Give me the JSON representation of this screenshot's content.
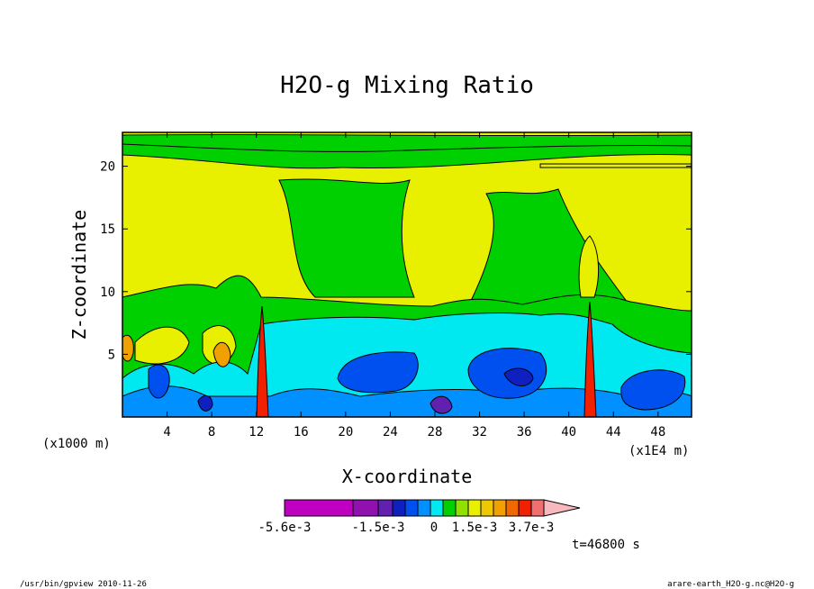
{
  "chart_data": {
    "type": "heatmap",
    "title": "H2O-g Mixing Ratio",
    "xlabel": "X-coordinate",
    "ylabel": "Z-coordinate",
    "x_unit_label": "(x1000 m)",
    "x_scale_label": "(x1E4 m)",
    "xlim": [
      0,
      51
    ],
    "ylim": [
      0,
      22.7
    ],
    "x_ticks": [
      "4",
      "8",
      "12",
      "16",
      "20",
      "24",
      "28",
      "32",
      "36",
      "40",
      "44",
      "48"
    ],
    "y_ticks": [
      "5",
      "10",
      "15",
      "20"
    ],
    "colorbar": {
      "labels": [
        "-5.6e-3",
        "-1.5e-3",
        "0",
        "1.5e-3",
        "3.7e-3"
      ],
      "colors": [
        "#c000c0",
        "#9010b0",
        "#6020b0",
        "#1020c0",
        "#0050f0",
        "#0090ff",
        "#00e8f0",
        "#00d000",
        "#90e000",
        "#e8f000",
        "#f0c800",
        "#f0a000",
        "#f06800",
        "#f02000",
        "#f07070",
        "#f8b8c0"
      ]
    },
    "time_label": "t=46800 s"
  },
  "footer": {
    "left": "/usr/bin/gpview   2010-11-26",
    "right": "arare-earth_H2O-g.nc@H2O-g"
  }
}
